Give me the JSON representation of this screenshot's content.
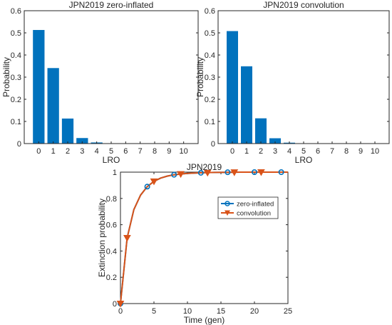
{
  "chart_data": [
    {
      "type": "bar",
      "title": "JPN2019 zero-inflated",
      "xlabel": "LRO",
      "ylabel": "Probability",
      "categories": [
        "0",
        "1",
        "2",
        "3",
        "4",
        "5",
        "6",
        "7",
        "8",
        "9",
        "10"
      ],
      "values": [
        0.513,
        0.341,
        0.113,
        0.025,
        0.005,
        0.001,
        0.0,
        0.0,
        0.0,
        0.0,
        0.0
      ],
      "xlim": [
        -1,
        11
      ],
      "ylim": [
        0,
        0.6
      ],
      "yticks": [
        "0",
        "0.1",
        "0.2",
        "0.3",
        "0.4",
        "0.5",
        "0.6"
      ],
      "bar_color": "#0072BD",
      "grid": false
    },
    {
      "type": "bar",
      "title": "JPN2019 convolution",
      "xlabel": "LRO",
      "ylabel": "Probability",
      "categories": [
        "0",
        "1",
        "2",
        "3",
        "4",
        "5",
        "6",
        "7",
        "8",
        "9",
        "10"
      ],
      "values": [
        0.508,
        0.349,
        0.114,
        0.024,
        0.004,
        0.001,
        0.0,
        0.0,
        0.0,
        0.0,
        0.0
      ],
      "xlim": [
        -1,
        11
      ],
      "ylim": [
        0,
        0.6
      ],
      "yticks": [
        "0",
        "0.1",
        "0.2",
        "0.3",
        "0.4",
        "0.5",
        "0.6"
      ],
      "bar_color": "#0072BD",
      "grid": false
    },
    {
      "type": "line",
      "title": "JPN2019",
      "xlabel": "Time (gen)",
      "ylabel": "Extinction probability",
      "xlim": [
        0,
        25
      ],
      "ylim": [
        0,
        1
      ],
      "xticks": [
        "0",
        "5",
        "10",
        "15",
        "20",
        "25"
      ],
      "yticks": [
        "0",
        "0.2",
        "0.4",
        "0.6",
        "0.8",
        "1"
      ],
      "legend_position": "top-right",
      "grid": false,
      "curve": {
        "x": [
          0,
          1,
          2,
          3,
          4,
          5,
          6,
          7,
          8,
          9,
          10,
          12,
          14,
          16,
          18,
          20,
          22,
          25
        ],
        "y": [
          0,
          0.5,
          0.715,
          0.825,
          0.89,
          0.93,
          0.955,
          0.97,
          0.98,
          0.986,
          0.99,
          0.995,
          0.998,
          0.999,
          1.0,
          1.0,
          1.0,
          1.0
        ]
      },
      "series": [
        {
          "name": "zero-inflated",
          "color": "#0072BD",
          "marker": "circle",
          "x": [
            0,
            4,
            8,
            12,
            16,
            20,
            24
          ],
          "y": [
            0,
            0.89,
            0.98,
            0.995,
            0.999,
            1.0,
            1.0
          ]
        },
        {
          "name": "convolution",
          "color": "#D95319",
          "marker": "triangle-down",
          "x": [
            0,
            1,
            5,
            9,
            13,
            17,
            21
          ],
          "y": [
            0,
            0.5,
            0.93,
            0.986,
            0.996,
            0.999,
            1.0
          ]
        }
      ]
    }
  ]
}
